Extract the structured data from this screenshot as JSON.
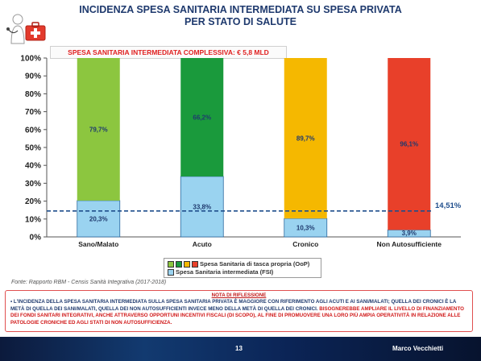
{
  "slide": {
    "title_line1": "INCIDENZA SPESA SANITARIA INTERMEDIATA SU SPESA PRIVATA",
    "title_line2": "PER STATO DI SALUTE",
    "subtitle": "SPESA SANITARIA INTERMEDIATA COMPLESSIVA: € 5,8 MLD",
    "source": "Fonte: Rapporto RBM - Censis Sanità Integrativa (2017-2018)",
    "note_title": "NOTA DI RIFLESSIONE",
    "note_text_1": "• L'INCIDENZA DELLA SPESA SANITARIA INTERMEDIATA SULLA SPESA SANITARIA PRIVATA È MAGGIORE CON RIFERIMENTO AGLI ACUTI E AI SANI/MALATI; QUELLA DEI CRONICI È LA METÀ DI QUELLA DEI SANI/MALATI, QUELLA DEI NON AUTOSUFFICIENTI INVECE MENO DELLA METÀ DI QUELLA DEI CRONICI.",
    "note_text_2": "BISOGNEREBBE AMPLIARE IL LIVELLO DI FINANZIAMENTO DEI FONDI SANITARI INTEGRATIVI, ANCHE ATTRAVERSO OPPORTUNI INCENTIVI FISCALI (DI SCOPO), AL FINE DI PROMUOVERE UNA LORO PIÙ AMPIA OPERATIVITÀ IN RELAZIONE ALLE PATOLOGIE CRONICHE ED AGLI STATI DI NON AUTOSUFFICIENZA.",
    "page_number": "13",
    "author": "Marco Vecchietti"
  },
  "colors": {
    "title": "#1f3a6e",
    "oop_sano": "#8cc63f",
    "oop_acuto": "#1a9a3c",
    "oop_cronico": "#f5b800",
    "oop_nonauto": "#e8402a",
    "fsi": "#9ad3f0",
    "reference_line": "#1f4e8c"
  },
  "chart_data": {
    "type": "bar",
    "stacked": true,
    "categories": [
      "Sano/Malato",
      "Acuto",
      "Cronico",
      "Non Autosufficiente"
    ],
    "series": [
      {
        "name": "Spesa Sanitaria intermediata (FSI)",
        "values": [
          20.3,
          33.8,
          10.3,
          3.9
        ],
        "labels": [
          "20,3%",
          "33,8%",
          "10,3%",
          "3,9%"
        ]
      },
      {
        "name": "Spesa Sanitaria di tasca propria (OoP)",
        "values": [
          79.7,
          66.2,
          89.7,
          96.1
        ],
        "labels": [
          "79,7%",
          "66,2%",
          "89,7%",
          "96,1%"
        ]
      }
    ],
    "y_ticks": [
      "0%",
      "10%",
      "20%",
      "30%",
      "40%",
      "50%",
      "60%",
      "70%",
      "80%",
      "90%",
      "100%"
    ],
    "ylim": [
      0,
      100
    ],
    "reference_line": {
      "value": 14.51,
      "label": "14,51%"
    },
    "legend_placement": "bottom-center"
  }
}
